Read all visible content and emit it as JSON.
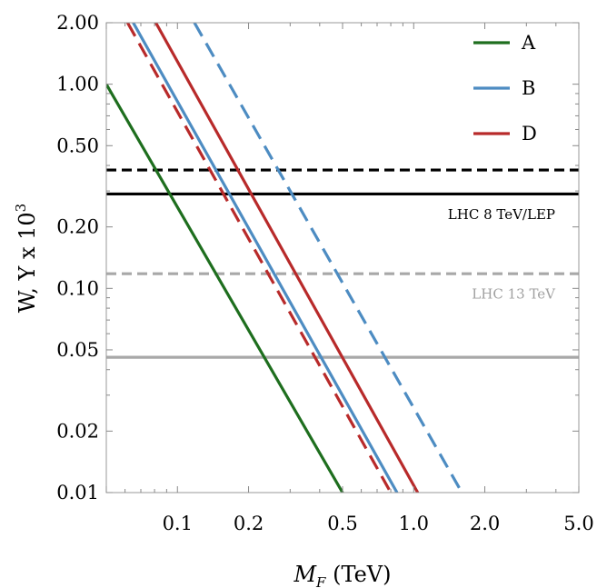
{
  "chart_data": {
    "type": "line",
    "xscale": "log",
    "yscale": "log",
    "xlim": [
      0.05,
      5.0
    ],
    "ylim": [
      0.01,
      2.0
    ],
    "xlabel_main": "M",
    "xlabel_sub": "F",
    "xlabel_unit": " (TeV)",
    "ylabel": "W, Y x 10",
    "ylabel_exp": "3",
    "xticks": [
      {
        "value": 0.1,
        "label": "0.1"
      },
      {
        "value": 0.2,
        "label": "0.2"
      },
      {
        "value": 0.5,
        "label": "0.5"
      },
      {
        "value": 1.0,
        "label": "1.0"
      },
      {
        "value": 2.0,
        "label": "2.0"
      },
      {
        "value": 5.0,
        "label": "5.0"
      }
    ],
    "yticks": [
      {
        "value": 0.01,
        "label": "0.01"
      },
      {
        "value": 0.02,
        "label": "0.02"
      },
      {
        "value": 0.05,
        "label": "0.05"
      },
      {
        "value": 0.1,
        "label": "0.10"
      },
      {
        "value": 0.2,
        "label": "0.20"
      },
      {
        "value": 0.5,
        "label": "0.50"
      },
      {
        "value": 1.0,
        "label": "1.00"
      },
      {
        "value": 2.0,
        "label": "2.00"
      }
    ],
    "series": [
      {
        "name": "A",
        "color": "#1e6e1e",
        "dash": false,
        "points": [
          [
            0.05,
            1.0
          ],
          [
            0.5,
            0.01
          ]
        ]
      },
      {
        "name": "B",
        "color": "#4d8cc2",
        "dash": false,
        "points": [
          [
            0.065,
            2.0
          ],
          [
            0.85,
            0.01
          ]
        ]
      },
      {
        "name": "B",
        "color": "#4d8cc2",
        "dash": true,
        "points": [
          [
            0.118,
            2.0
          ],
          [
            1.6,
            0.01
          ]
        ]
      },
      {
        "name": "D",
        "color": "#b82a2a",
        "dash": false,
        "points": [
          [
            0.081,
            2.0
          ],
          [
            1.04,
            0.01
          ]
        ]
      },
      {
        "name": "D",
        "color": "#b82a2a",
        "dash": true,
        "points": [
          [
            0.0615,
            2.0
          ],
          [
            0.8,
            0.01
          ]
        ]
      }
    ],
    "legend": {
      "placement": "top-right",
      "entries": [
        {
          "label": "A",
          "color": "#1e6e1e"
        },
        {
          "label": "B",
          "color": "#4d8cc2"
        },
        {
          "label": "D",
          "color": "#b82a2a"
        }
      ]
    },
    "hlines": [
      {
        "y": 0.38,
        "color": "#000000",
        "dash": true
      },
      {
        "y": 0.29,
        "color": "#000000",
        "dash": false
      },
      {
        "y": 0.118,
        "color": "#a8a8a8",
        "dash": true
      },
      {
        "y": 0.046,
        "color": "#a8a8a8",
        "dash": false
      }
    ],
    "annotations": [
      {
        "text": "LHC 8 TeV/LEP",
        "color": "#000000",
        "y": 0.23
      },
      {
        "text": "LHC 13 TeV",
        "color": "#a0a0a0",
        "y": 0.094
      }
    ]
  }
}
